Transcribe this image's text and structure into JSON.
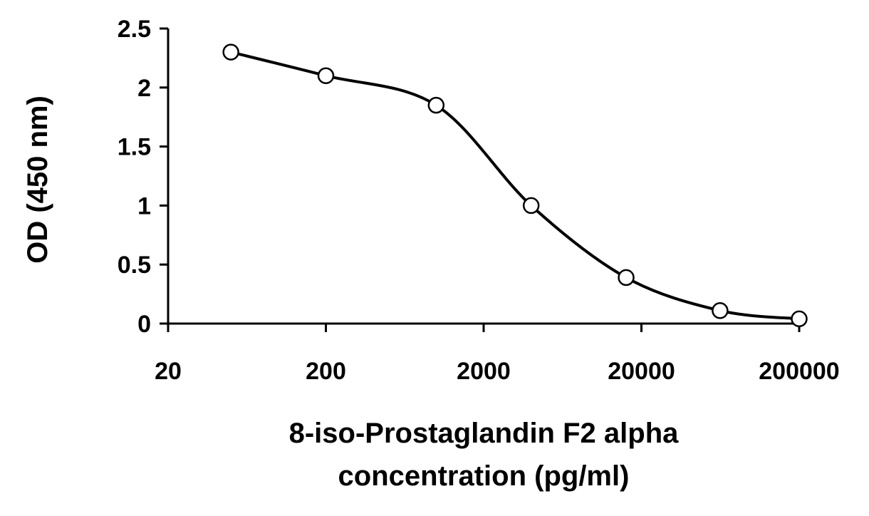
{
  "chart_data": {
    "type": "line",
    "xlabel_lines": [
      "8-iso-Prostaglandin F2 alpha",
      "concentration (pg/ml)"
    ],
    "ylabel": "OD (450 nm)",
    "x_scale": "log",
    "xlim": [
      20,
      200000
    ],
    "ylim": [
      0,
      2.5
    ],
    "x_ticks": [
      20,
      200,
      2000,
      20000,
      200000
    ],
    "x_tick_labels": [
      "20",
      "200",
      "2000",
      "20000",
      "200000"
    ],
    "y_ticks": [
      0,
      0.5,
      1,
      1.5,
      2,
      2.5
    ],
    "y_tick_labels": [
      "0",
      "0.5",
      "1",
      "1.5",
      "2",
      "2.5"
    ],
    "grid": false,
    "legend": "none",
    "series": [
      {
        "x": [
          50,
          200,
          1000,
          4000,
          16000,
          63000,
          200000
        ],
        "y": [
          2.3,
          2.1,
          1.85,
          1.0,
          0.39,
          0.11,
          0.04
        ],
        "color": "#000000",
        "marker": "open-circle",
        "smooth": true
      }
    ]
  }
}
